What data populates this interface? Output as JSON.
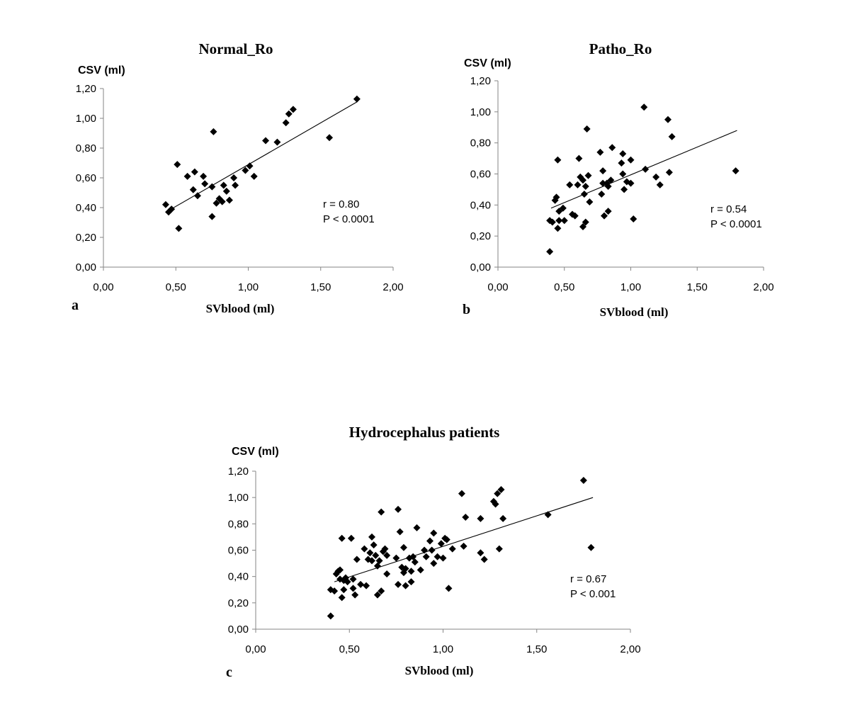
{
  "chart_data": [
    {
      "type": "scatter",
      "panel": "a",
      "title": "Normal_Ro",
      "ylabel": "CSV (ml)",
      "xlabel": "SVblood (ml)",
      "xlim": [
        0,
        2
      ],
      "ylim": [
        0,
        1.2
      ],
      "xticks": [
        0,
        0.5,
        1,
        1.5,
        2
      ],
      "yticks": [
        0,
        0.2,
        0.4,
        0.6,
        0.8,
        1.0,
        1.2
      ],
      "xtick_labels": [
        "0,00",
        "0,50",
        "1,00",
        "1,50",
        "2,00"
      ],
      "ytick_labels": [
        "0,00",
        "0,20",
        "0,40",
        "0,60",
        "0,80",
        "1,00",
        "1,20"
      ],
      "stat_r": "r = 0.80",
      "stat_p": "P < 0.0001",
      "trendline": [
        [
          0.45,
          0.38
        ],
        [
          1.75,
          1.11
        ]
      ],
      "points": [
        [
          0.43,
          0.42
        ],
        [
          0.45,
          0.37
        ],
        [
          0.47,
          0.39
        ],
        [
          0.51,
          0.69
        ],
        [
          0.52,
          0.26
        ],
        [
          0.58,
          0.61
        ],
        [
          0.62,
          0.52
        ],
        [
          0.63,
          0.64
        ],
        [
          0.65,
          0.48
        ],
        [
          0.69,
          0.61
        ],
        [
          0.7,
          0.56
        ],
        [
          0.75,
          0.54
        ],
        [
          0.75,
          0.34
        ],
        [
          0.76,
          0.91
        ],
        [
          0.78,
          0.43
        ],
        [
          0.8,
          0.46
        ],
        [
          0.82,
          0.44
        ],
        [
          0.83,
          0.55
        ],
        [
          0.85,
          0.51
        ],
        [
          0.87,
          0.45
        ],
        [
          0.9,
          0.6
        ],
        [
          0.91,
          0.55
        ],
        [
          0.98,
          0.65
        ],
        [
          1.01,
          0.68
        ],
        [
          1.04,
          0.61
        ],
        [
          1.12,
          0.85
        ],
        [
          1.2,
          0.84
        ],
        [
          1.26,
          0.97
        ],
        [
          1.28,
          1.03
        ],
        [
          1.31,
          1.06
        ],
        [
          1.56,
          0.87
        ],
        [
          1.75,
          1.13
        ]
      ]
    },
    {
      "type": "scatter",
      "panel": "b",
      "title": "Patho_Ro",
      "ylabel": "CSV (ml)",
      "xlabel": "SVblood (ml)",
      "xlim": [
        0,
        2
      ],
      "ylim": [
        0,
        1.2
      ],
      "xticks": [
        0,
        0.5,
        1,
        1.5,
        2
      ],
      "yticks": [
        0,
        0.2,
        0.4,
        0.6,
        0.8,
        1.0,
        1.2
      ],
      "xtick_labels": [
        "0,00",
        "0,50",
        "1,00",
        "1,50",
        "2,00"
      ],
      "ytick_labels": [
        "0,00",
        "0,20",
        "0,40",
        "0,60",
        "0,80",
        "1,00",
        "1,20"
      ],
      "stat_r": "r = 0.54",
      "stat_p": "P < 0.0001",
      "trendline": [
        [
          0.4,
          0.38
        ],
        [
          1.8,
          0.88
        ]
      ],
      "points": [
        [
          0.39,
          0.1
        ],
        [
          0.39,
          0.3
        ],
        [
          0.41,
          0.29
        ],
        [
          0.43,
          0.43
        ],
        [
          0.44,
          0.45
        ],
        [
          0.45,
          0.69
        ],
        [
          0.45,
          0.25
        ],
        [
          0.46,
          0.3
        ],
        [
          0.46,
          0.36
        ],
        [
          0.49,
          0.38
        ],
        [
          0.5,
          0.3
        ],
        [
          0.54,
          0.53
        ],
        [
          0.56,
          0.34
        ],
        [
          0.58,
          0.33
        ],
        [
          0.6,
          0.53
        ],
        [
          0.61,
          0.7
        ],
        [
          0.62,
          0.58
        ],
        [
          0.64,
          0.56
        ],
        [
          0.64,
          0.26
        ],
        [
          0.65,
          0.47
        ],
        [
          0.66,
          0.52
        ],
        [
          0.66,
          0.29
        ],
        [
          0.67,
          0.89
        ],
        [
          0.68,
          0.59
        ],
        [
          0.69,
          0.42
        ],
        [
          0.77,
          0.74
        ],
        [
          0.78,
          0.47
        ],
        [
          0.79,
          0.62
        ],
        [
          0.79,
          0.54
        ],
        [
          0.8,
          0.33
        ],
        [
          0.82,
          0.54
        ],
        [
          0.83,
          0.52
        ],
        [
          0.83,
          0.36
        ],
        [
          0.85,
          0.56
        ],
        [
          0.86,
          0.77
        ],
        [
          0.93,
          0.67
        ],
        [
          0.94,
          0.6
        ],
        [
          0.94,
          0.73
        ],
        [
          0.95,
          0.5
        ],
        [
          0.97,
          0.55
        ],
        [
          1.0,
          0.69
        ],
        [
          1.0,
          0.54
        ],
        [
          1.02,
          0.31
        ],
        [
          1.1,
          1.03
        ],
        [
          1.11,
          0.63
        ],
        [
          1.19,
          0.58
        ],
        [
          1.22,
          0.53
        ],
        [
          1.28,
          0.95
        ],
        [
          1.29,
          0.61
        ],
        [
          1.31,
          0.84
        ],
        [
          1.79,
          0.62
        ]
      ]
    },
    {
      "type": "scatter",
      "panel": "c",
      "title": "Hydrocephalus patients",
      "ylabel": "CSV (ml)",
      "xlabel": "SVblood (ml)",
      "xlim": [
        0,
        2
      ],
      "ylim": [
        0,
        1.2
      ],
      "xticks": [
        0,
        0.5,
        1,
        1.5,
        2
      ],
      "yticks": [
        0,
        0.2,
        0.4,
        0.6,
        0.8,
        1.0,
        1.2
      ],
      "xtick_labels": [
        "0,00",
        "0,50",
        "1,00",
        "1,50",
        "2,00"
      ],
      "ytick_labels": [
        "0,00",
        "0,20",
        "0,40",
        "0,60",
        "0,80",
        "1,00",
        "1,20"
      ],
      "stat_r": "r = 0.67",
      "stat_p": "P < 0.001",
      "trendline": [
        [
          0.42,
          0.36
        ],
        [
          1.8,
          1.0
        ]
      ],
      "points": [
        [
          0.4,
          0.1
        ],
        [
          0.4,
          0.3
        ],
        [
          0.42,
          0.29
        ],
        [
          0.43,
          0.42
        ],
        [
          0.44,
          0.44
        ],
        [
          0.45,
          0.45
        ],
        [
          0.45,
          0.38
        ],
        [
          0.46,
          0.69
        ],
        [
          0.46,
          0.24
        ],
        [
          0.47,
          0.3
        ],
        [
          0.47,
          0.37
        ],
        [
          0.48,
          0.39
        ],
        [
          0.49,
          0.36
        ],
        [
          0.51,
          0.69
        ],
        [
          0.52,
          0.31
        ],
        [
          0.52,
          0.38
        ],
        [
          0.53,
          0.26
        ],
        [
          0.54,
          0.53
        ],
        [
          0.56,
          0.34
        ],
        [
          0.58,
          0.61
        ],
        [
          0.59,
          0.33
        ],
        [
          0.6,
          0.53
        ],
        [
          0.61,
          0.58
        ],
        [
          0.62,
          0.52
        ],
        [
          0.62,
          0.7
        ],
        [
          0.63,
          0.64
        ],
        [
          0.64,
          0.56
        ],
        [
          0.65,
          0.26
        ],
        [
          0.65,
          0.48
        ],
        [
          0.66,
          0.52
        ],
        [
          0.67,
          0.89
        ],
        [
          0.67,
          0.29
        ],
        [
          0.68,
          0.59
        ],
        [
          0.69,
          0.61
        ],
        [
          0.7,
          0.42
        ],
        [
          0.7,
          0.56
        ],
        [
          0.75,
          0.54
        ],
        [
          0.76,
          0.34
        ],
        [
          0.76,
          0.91
        ],
        [
          0.77,
          0.74
        ],
        [
          0.78,
          0.47
        ],
        [
          0.79,
          0.43
        ],
        [
          0.79,
          0.62
        ],
        [
          0.8,
          0.46
        ],
        [
          0.8,
          0.33
        ],
        [
          0.82,
          0.54
        ],
        [
          0.83,
          0.36
        ],
        [
          0.83,
          0.44
        ],
        [
          0.84,
          0.55
        ],
        [
          0.85,
          0.51
        ],
        [
          0.86,
          0.77
        ],
        [
          0.88,
          0.45
        ],
        [
          0.9,
          0.6
        ],
        [
          0.91,
          0.55
        ],
        [
          0.93,
          0.67
        ],
        [
          0.94,
          0.6
        ],
        [
          0.95,
          0.73
        ],
        [
          0.95,
          0.5
        ],
        [
          0.97,
          0.55
        ],
        [
          0.99,
          0.65
        ],
        [
          1.0,
          0.54
        ],
        [
          1.01,
          0.69
        ],
        [
          1.02,
          0.68
        ],
        [
          1.03,
          0.31
        ],
        [
          1.05,
          0.61
        ],
        [
          1.1,
          1.03
        ],
        [
          1.11,
          0.63
        ],
        [
          1.12,
          0.85
        ],
        [
          1.2,
          0.84
        ],
        [
          1.2,
          0.58
        ],
        [
          1.22,
          0.53
        ],
        [
          1.27,
          0.97
        ],
        [
          1.28,
          0.95
        ],
        [
          1.29,
          1.03
        ],
        [
          1.3,
          0.61
        ],
        [
          1.31,
          1.06
        ],
        [
          1.32,
          0.84
        ],
        [
          1.56,
          0.87
        ],
        [
          1.75,
          1.13
        ],
        [
          1.79,
          0.62
        ]
      ]
    }
  ]
}
